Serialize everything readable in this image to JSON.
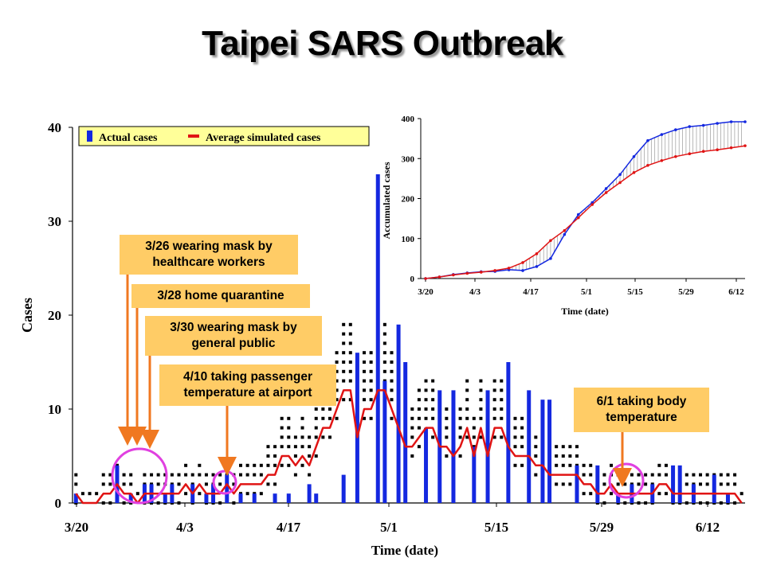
{
  "title": "Taipei SARS Outbreak",
  "colors": {
    "actual": "#1428e0",
    "simulated": "#e01414",
    "callout_bg": "#ffcc66",
    "arrow": "#f07820",
    "circle": "#e040e0",
    "legend_bg": "#ffff99"
  },
  "callouts": [
    {
      "id": "c1",
      "text": "3/26 wearing mask by healthcare workers"
    },
    {
      "id": "c2",
      "text": "3/28 home quarantine"
    },
    {
      "id": "c3",
      "text": "3/30 wearing mask by general public"
    },
    {
      "id": "c4",
      "text": "4/10 taking passenger temperature at airport"
    },
    {
      "id": "c5",
      "text": "6/1 taking body temperature"
    }
  ],
  "chart_data": [
    {
      "type": "bar",
      "xlabel": "Time (date)",
      "ylabel": "Cases",
      "ylim": [
        0,
        40
      ],
      "yticks": [
        0,
        10,
        20,
        30,
        40
      ],
      "xticks": [
        "3/20",
        "4/3",
        "4/17",
        "5/1",
        "5/15",
        "5/29",
        "6/12"
      ],
      "legend": {
        "position": "top-left",
        "entries": [
          "Actual cases",
          "Average simulated cases"
        ]
      },
      "series": [
        {
          "name": "Actual cases",
          "type": "bar",
          "values": [
            1,
            0,
            0,
            0,
            0,
            0,
            4,
            0,
            1,
            0,
            2,
            2,
            0,
            1,
            2,
            0,
            0,
            2,
            0,
            1,
            2,
            0,
            3,
            0,
            1,
            0,
            1,
            0,
            0,
            1,
            0,
            1,
            0,
            0,
            2,
            1,
            0,
            0,
            0,
            3,
            0,
            16,
            0,
            0,
            35,
            13,
            0,
            19,
            15,
            0,
            0,
            8,
            0,
            12,
            0,
            12,
            0,
            0,
            6,
            0,
            12,
            0,
            0,
            15,
            0,
            0,
            12,
            0,
            11,
            11,
            0,
            0,
            0,
            4,
            0,
            0,
            4,
            0,
            0,
            1,
            0,
            2,
            0,
            0,
            2,
            0,
            0,
            4,
            4,
            0,
            2,
            0,
            0,
            3,
            0,
            1,
            0,
            0
          ]
        },
        {
          "name": "Average simulated cases",
          "type": "line",
          "values": [
            1,
            0,
            0,
            0,
            1,
            1,
            2,
            1,
            1,
            0,
            1,
            1,
            1,
            1,
            1,
            1,
            2,
            1,
            2,
            1,
            1,
            1,
            2,
            1,
            2,
            2,
            2,
            2,
            3,
            3,
            5,
            5,
            4,
            5,
            4,
            6,
            8,
            8,
            10,
            12,
            12,
            7,
            10,
            10,
            12,
            12,
            10,
            8,
            6,
            6,
            7,
            8,
            8,
            6,
            6,
            5,
            6,
            8,
            5,
            8,
            5,
            8,
            8,
            6,
            5,
            5,
            5,
            4,
            4,
            3,
            3,
            3,
            3,
            3,
            2,
            2,
            1,
            1,
            2,
            1,
            1,
            1,
            1,
            1,
            1,
            2,
            2,
            1,
            1,
            1,
            1,
            1,
            1,
            1,
            1,
            1,
            1,
            0
          ]
        }
      ]
    },
    {
      "type": "line",
      "xlabel": "Time (date)",
      "ylabel": "Accumulated cases",
      "ylim": [
        0,
        400
      ],
      "yticks": [
        0,
        100,
        200,
        300,
        400
      ],
      "xticks": [
        "3/20",
        "4/3",
        "4/17",
        "5/1",
        "5/15",
        "5/29",
        "6/12"
      ],
      "series": [
        {
          "name": "Accumulated actual",
          "values": [
            0,
            4,
            10,
            14,
            17,
            18,
            22,
            20,
            30,
            50,
            110,
            160,
            190,
            225,
            260,
            305,
            345,
            360,
            372,
            380,
            383,
            388,
            392,
            392
          ]
        },
        {
          "name": "Accumulated simulated",
          "values": [
            0,
            4,
            9,
            13,
            16,
            20,
            26,
            40,
            62,
            95,
            120,
            152,
            185,
            215,
            240,
            265,
            283,
            295,
            305,
            312,
            318,
            322,
            327,
            332
          ]
        }
      ]
    }
  ]
}
